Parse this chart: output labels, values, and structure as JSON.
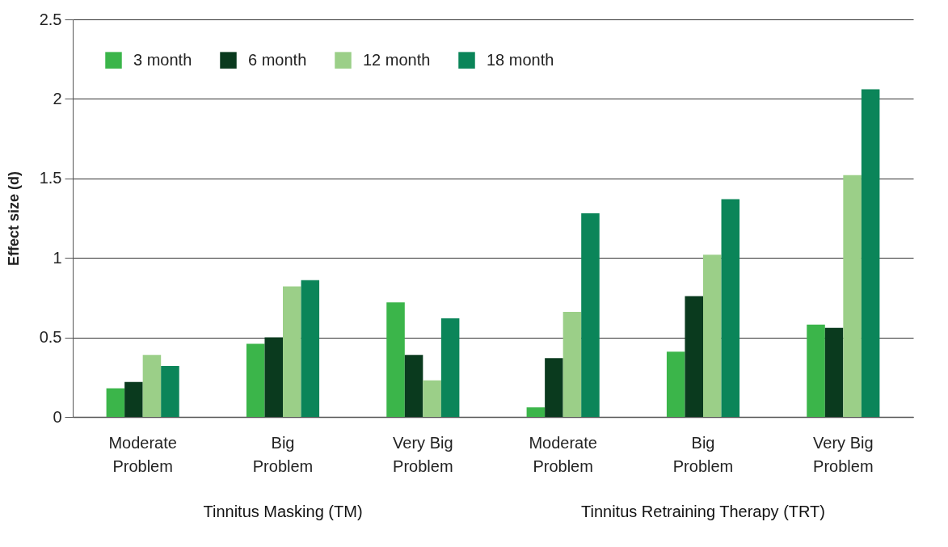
{
  "chart_data": {
    "type": "bar",
    "ylabel": "Effect size (d)",
    "categories": [
      "Moderate Problem",
      "Big Problem",
      "Very Big Problem",
      "Moderate Problem",
      "Big Problem",
      "Very Big Problem"
    ],
    "series": [
      {
        "name": "3 month",
        "color": "#3bb54a",
        "values": [
          0.18,
          0.46,
          0.72,
          0.06,
          0.41,
          0.58
        ]
      },
      {
        "name": "6 month",
        "color": "#0a3a1e",
        "values": [
          0.22,
          0.5,
          0.39,
          0.37,
          0.76,
          0.56
        ]
      },
      {
        "name": "12 month",
        "color": "#9bcf88",
        "values": [
          0.39,
          0.82,
          0.23,
          0.66,
          1.02,
          1.52
        ]
      },
      {
        "name": "18 month",
        "color": "#0b8559",
        "values": [
          0.32,
          0.86,
          0.62,
          1.28,
          1.37,
          2.06
        ]
      }
    ],
    "ylim": [
      0,
      2.5
    ],
    "yticks": [
      0,
      0.5,
      1,
      1.5,
      2,
      2.5
    ],
    "grid": "y",
    "legend": "top left",
    "annotations": [
      "Tinnitus Masking (TM)",
      "Tinnitus Retraining Therapy (TRT)"
    ]
  }
}
